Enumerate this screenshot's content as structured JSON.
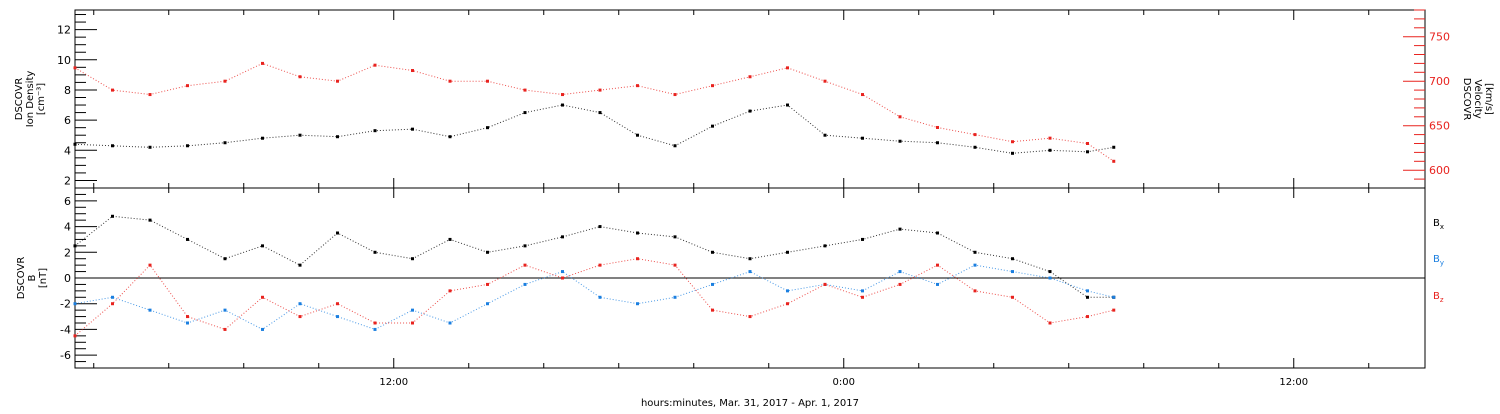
{
  "colors": {
    "black": "#000000",
    "red": "#e8231f",
    "blue": "#1b7fe0"
  },
  "xaxis": {
    "label": "hours:minutes, Mar. 31, 2017 - Apr. 1, 2017",
    "range_hours": [
      -20.5,
      15.5
    ],
    "major_ticks": [
      {
        "h": -12,
        "label": "12:00"
      },
      {
        "h": 0,
        "label": "0:00"
      },
      {
        "h": 12,
        "label": "12:00"
      }
    ],
    "minor_tick_step_hours": 2
  },
  "chart_data": [
    {
      "type": "scatter",
      "panel": "top",
      "ylabel": [
        "DSCOVR",
        "Ion Density",
        "[cm⁻³]"
      ],
      "y2label": [
        "DSCOVR",
        "Velocity",
        "[km/s]"
      ],
      "ylim": [
        1.5,
        13.3
      ],
      "y2lim": [
        580,
        780
      ],
      "yticks": [
        2,
        4,
        6,
        8,
        10,
        12
      ],
      "y2ticks": [
        600,
        650,
        700,
        750
      ],
      "series": [
        {
          "axis": "left",
          "color": "black",
          "x": [
            -20.5,
            -19.5,
            -18.5,
            -17.5,
            -16.5,
            -15.5,
            -14.5,
            -13.5,
            -12.5,
            -11.5,
            -10.5,
            -9.5,
            -8.5,
            -7.5,
            -6.5,
            -5.5,
            -4.5,
            -3.5,
            -2.5,
            -1.5,
            -0.5,
            0.5,
            1.5,
            2.5,
            3.5,
            4.5,
            5.5,
            6.5,
            7.2
          ],
          "y": [
            4.4,
            4.3,
            4.2,
            4.3,
            4.5,
            4.8,
            5.0,
            4.9,
            5.3,
            5.4,
            4.9,
            5.5,
            6.5,
            7.0,
            6.5,
            5.0,
            4.3,
            5.6,
            6.6,
            7.0,
            5.0,
            4.8,
            4.6,
            4.5,
            4.2,
            3.8,
            4.0,
            3.9,
            4.2
          ]
        },
        {
          "axis": "right",
          "color": "red",
          "x": [
            -20.5,
            -19.5,
            -18.5,
            -17.5,
            -16.5,
            -15.5,
            -14.5,
            -13.5,
            -12.5,
            -11.5,
            -10.5,
            -9.5,
            -8.5,
            -7.5,
            -6.5,
            -5.5,
            -4.5,
            -3.5,
            -2.5,
            -1.5,
            -0.5,
            0.5,
            1.5,
            2.5,
            3.5,
            4.5,
            5.5,
            6.5,
            7.2
          ],
          "y": [
            715,
            690,
            685,
            695,
            700,
            720,
            705,
            700,
            718,
            712,
            700,
            700,
            690,
            685,
            690,
            695,
            685,
            695,
            705,
            715,
            700,
            685,
            660,
            648,
            640,
            632,
            636,
            630,
            610
          ]
        }
      ]
    },
    {
      "type": "scatter",
      "panel": "bottom",
      "ylabel": [
        "DSCOVR",
        "B",
        "[nT]"
      ],
      "ylim": [
        -7,
        7
      ],
      "yticks": [
        -6,
        -4,
        -2,
        0,
        2,
        4,
        6
      ],
      "legend": [
        {
          "label": "B",
          "sub": "x",
          "color": "black"
        },
        {
          "label": "B",
          "sub": "y",
          "color": "blue"
        },
        {
          "label": "B",
          "sub": "z",
          "color": "red"
        }
      ],
      "series": [
        {
          "name": "Bx",
          "color": "black",
          "x": [
            -20.5,
            -19.5,
            -18.5,
            -17.5,
            -16.5,
            -15.5,
            -14.5,
            -13.5,
            -12.5,
            -11.5,
            -10.5,
            -9.5,
            -8.5,
            -7.5,
            -6.5,
            -5.5,
            -4.5,
            -3.5,
            -2.5,
            -1.5,
            -0.5,
            0.5,
            1.5,
            2.5,
            3.5,
            4.5,
            5.5,
            6.5,
            7.2
          ],
          "y": [
            2.5,
            4.8,
            4.5,
            3.0,
            1.5,
            2.5,
            1.0,
            3.5,
            2.0,
            1.5,
            3.0,
            2.0,
            2.5,
            3.2,
            4.0,
            3.5,
            3.2,
            2.0,
            1.5,
            2.0,
            2.5,
            3.0,
            3.8,
            3.5,
            2.0,
            1.5,
            0.5,
            -1.5,
            -1.5
          ]
        },
        {
          "name": "By",
          "color": "blue",
          "x": [
            -20.5,
            -19.5,
            -18.5,
            -17.5,
            -16.5,
            -15.5,
            -14.5,
            -13.5,
            -12.5,
            -11.5,
            -10.5,
            -9.5,
            -8.5,
            -7.5,
            -6.5,
            -5.5,
            -4.5,
            -3.5,
            -2.5,
            -1.5,
            -0.5,
            0.5,
            1.5,
            2.5,
            3.5,
            4.5,
            5.5,
            6.5,
            7.2
          ],
          "y": [
            -2.0,
            -1.5,
            -2.5,
            -3.5,
            -2.5,
            -4.0,
            -2.0,
            -3.0,
            -4.0,
            -2.5,
            -3.5,
            -2.0,
            -0.5,
            0.5,
            -1.5,
            -2.0,
            -1.5,
            -0.5,
            0.5,
            -1.0,
            -0.5,
            -1.0,
            0.5,
            -0.5,
            1.0,
            0.5,
            0.0,
            -1.0,
            -1.5
          ]
        },
        {
          "name": "Bz",
          "color": "red",
          "x": [
            -20.5,
            -19.5,
            -18.5,
            -17.5,
            -16.5,
            -15.5,
            -14.5,
            -13.5,
            -12.5,
            -11.5,
            -10.5,
            -9.5,
            -8.5,
            -7.5,
            -6.5,
            -5.5,
            -4.5,
            -3.5,
            -2.5,
            -1.5,
            -0.5,
            0.5,
            1.5,
            2.5,
            3.5,
            4.5,
            5.5,
            6.5,
            7.2
          ],
          "y": [
            -4.5,
            -2.0,
            1.0,
            -3.0,
            -4.0,
            -1.5,
            -3.0,
            -2.0,
            -3.5,
            -3.5,
            -1.0,
            -0.5,
            1.0,
            0.0,
            1.0,
            1.5,
            1.0,
            -2.5,
            -3.0,
            -2.0,
            -0.5,
            -1.5,
            -0.5,
            1.0,
            -1.0,
            -1.5,
            -3.5,
            -3.0,
            -2.5
          ]
        }
      ]
    }
  ]
}
